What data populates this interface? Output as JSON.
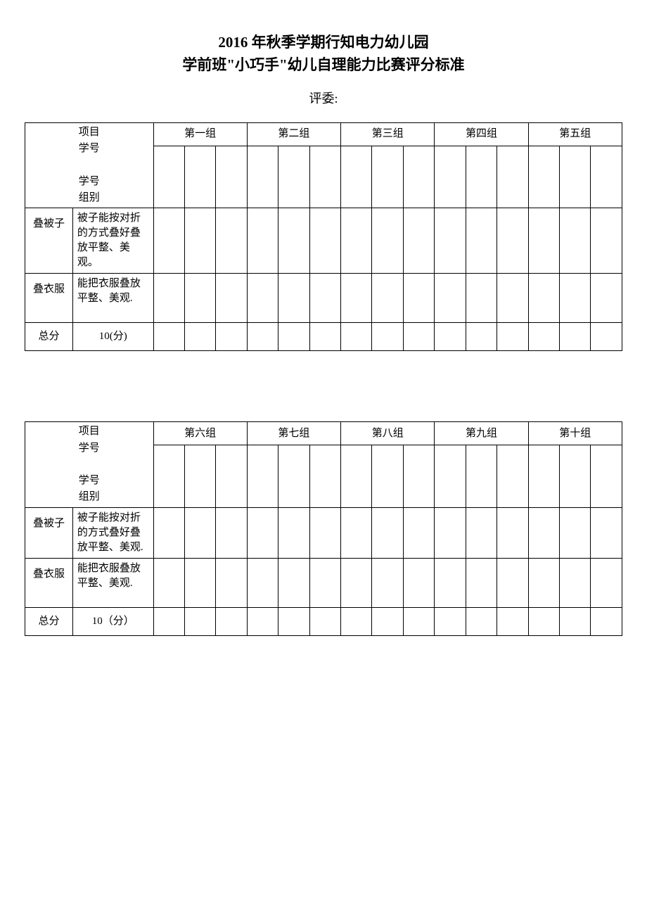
{
  "title": {
    "line1": "2016 年秋季学期行知电力幼儿园",
    "line2": "学前班\"小巧手\"幼儿自理能力比赛评分标准"
  },
  "judge_label": "评委:",
  "header_labels": {
    "project": "项目",
    "student_id": "学号",
    "group": "组别"
  },
  "rows": {
    "quilt": {
      "name": "叠被子",
      "desc1": "被子能按对折的方式叠好叠放平整、美观。",
      "desc2": "被子能按对折的方式叠好叠放平整、美观."
    },
    "clothes": {
      "name": "叠衣服",
      "desc": "能把衣服叠放平整、美观."
    },
    "total": {
      "name": "总分",
      "desc1": "10(分)",
      "desc2": "10（分）"
    }
  },
  "tables": [
    {
      "groups": [
        "第一组",
        "第二组",
        "第三组",
        "第四组",
        "第五组"
      ]
    },
    {
      "groups": [
        "第六组",
        "第七组",
        "第八组",
        "第九组",
        "第十组"
      ]
    }
  ],
  "style": {
    "background_color": "#ffffff",
    "border_color": "#000000",
    "title_fontsize": 21,
    "body_fontsize": 15,
    "judge_fontsize": 18,
    "subcells_per_group": 3
  }
}
